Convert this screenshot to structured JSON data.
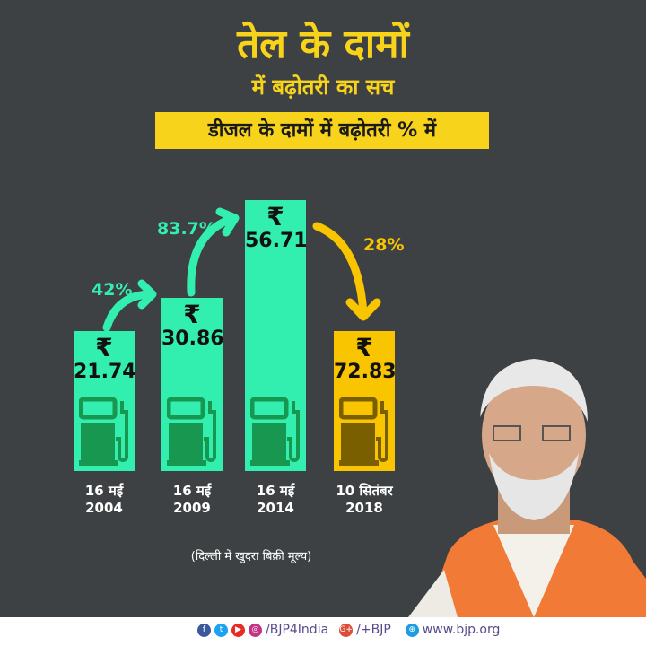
{
  "header": {
    "title": "तेल के दामों",
    "subtitle": "में बढ़ोतरी का सच",
    "banner": "डीजल के दामों में बढ़ोतरी % में"
  },
  "chart_data": {
    "type": "bar",
    "categories": [
      "16 मई 2004",
      "16 मई 2009",
      "16 मई 2014",
      "10 सितंबर 2018"
    ],
    "category_lines": [
      [
        "16 मई",
        "2004"
      ],
      [
        "16 मई",
        "2009"
      ],
      [
        "16 मई",
        "2014"
      ],
      [
        "10 सितंबर",
        "2018"
      ]
    ],
    "currency_symbol": "₹",
    "values": [
      21.74,
      30.86,
      56.71,
      72.83
    ],
    "value_labels": [
      "21.74",
      "30.86",
      "56.71",
      "72.83"
    ],
    "changes": [
      "42%",
      "83.7%",
      "28%"
    ],
    "colors": [
      "#33efaf",
      "#33efaf",
      "#33efaf",
      "#f8c500"
    ],
    "icon": "fuel-pump-icon"
  },
  "note": "(दिल्ली में खुदरा बिक्री मूल्य)",
  "footer": {
    "handle": "/BJP4India",
    "gplus": "/+BJP",
    "website": "www.bjp.org"
  }
}
